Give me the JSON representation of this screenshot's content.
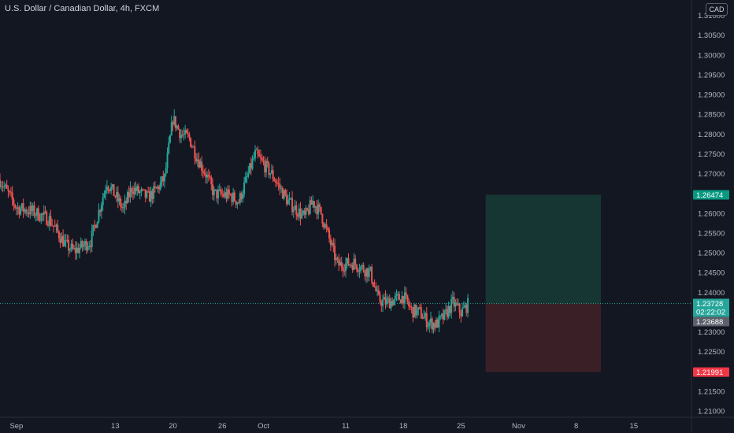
{
  "header": {
    "title": "U.S. Dollar / Canadian Dollar, 4h, FXCM",
    "currency_badge": "CAD"
  },
  "colors": {
    "background": "#131722",
    "up": "#26a69a",
    "down": "#ef5350",
    "text": "#b2b5be",
    "profit_zone": "#153633",
    "loss_zone": "#3a2026",
    "current_label": "#26a69a",
    "last_label": "#5d606b",
    "target_label": "#089981",
    "stop_label": "#f23645"
  },
  "chart_data": {
    "type": "candlestick",
    "title": "U.S. Dollar / Canadian Dollar, 4h, FXCM",
    "xlabel": "",
    "ylabel": "",
    "x_ticks": [
      "Sep",
      "13",
      "20",
      "26",
      "Oct",
      "11",
      "18",
      "25",
      "Nov",
      "8",
      "15"
    ],
    "y_ticks": [
      1.31,
      1.305,
      1.3,
      1.295,
      1.29,
      1.285,
      1.28,
      1.275,
      1.27,
      1.265,
      1.26,
      1.255,
      1.25,
      1.245,
      1.24,
      1.235,
      1.23,
      1.225,
      1.22,
      1.215,
      1.21
    ],
    "y_tick_labels": [
      "1.31000",
      "1.30500",
      "1.30000",
      "1.29500",
      "1.29000",
      "1.28500",
      "1.28000",
      "1.27500",
      "1.27000",
      "1.26500",
      "1.26000",
      "1.25500",
      "1.25000",
      "1.24500",
      "1.24000",
      "1.23500",
      "1.23000",
      "1.22500",
      "1.22000",
      "1.21500",
      "1.21000"
    ],
    "ylim": [
      1.2085,
      1.314
    ],
    "xlim": [
      "Aug 30",
      "Nov 22"
    ],
    "grid": false,
    "path": [
      {
        "date": "Aug 30",
        "price": 1.2685
      },
      {
        "date": "Sep 1",
        "price": 1.2615
      },
      {
        "date": "Sep 3",
        "price": 1.2605
      },
      {
        "date": "Sep 5",
        "price": 1.2585
      },
      {
        "date": "Sep 7",
        "price": 1.252
      },
      {
        "date": "Sep 8",
        "price": 1.2505
      },
      {
        "date": "Sep 10",
        "price": 1.253
      },
      {
        "date": "Sep 12",
        "price": 1.268
      },
      {
        "date": "Sep 14",
        "price": 1.261
      },
      {
        "date": "Sep 15",
        "price": 1.2665
      },
      {
        "date": "Sep 17",
        "price": 1.264
      },
      {
        "date": "Sep 18",
        "price": 1.266
      },
      {
        "date": "Sep 19",
        "price": 1.269
      },
      {
        "date": "Sep 20",
        "price": 1.284
      },
      {
        "date": "Sep 21",
        "price": 1.28
      },
      {
        "date": "Sep 22",
        "price": 1.279
      },
      {
        "date": "Sep 23",
        "price": 1.274
      },
      {
        "date": "Sep 24",
        "price": 1.27
      },
      {
        "date": "Sep 25",
        "price": 1.265
      },
      {
        "date": "Sep 27",
        "price": 1.2645
      },
      {
        "date": "Sep 28",
        "price": 1.263
      },
      {
        "date": "Sep 30",
        "price": 1.275
      },
      {
        "date": "Oct 2",
        "price": 1.27
      },
      {
        "date": "Oct 4",
        "price": 1.263
      },
      {
        "date": "Oct 6",
        "price": 1.259
      },
      {
        "date": "Oct 7",
        "price": 1.263
      },
      {
        "date": "Oct 8",
        "price": 1.26
      },
      {
        "date": "Oct 10",
        "price": 1.247
      },
      {
        "date": "Oct 12",
        "price": 1.2475
      },
      {
        "date": "Oct 14",
        "price": 1.245
      },
      {
        "date": "Oct 15",
        "price": 1.238
      },
      {
        "date": "Oct 16",
        "price": 1.2375
      },
      {
        "date": "Oct 18",
        "price": 1.239
      },
      {
        "date": "Oct 19",
        "price": 1.2355
      },
      {
        "date": "Oct 20",
        "price": 1.235
      },
      {
        "date": "Oct 21",
        "price": 1.2325
      },
      {
        "date": "Oct 22",
        "price": 1.232
      },
      {
        "date": "Oct 23",
        "price": 1.234
      },
      {
        "date": "Oct 24",
        "price": 1.2375
      },
      {
        "date": "Oct 25",
        "price": 1.235
      },
      {
        "date": "Oct 26",
        "price": 1.2373
      }
    ],
    "position": {
      "type": "long",
      "start_date": "Oct 28",
      "end_date": "Nov 11",
      "entry": 1.23728,
      "target": 1.26474,
      "stop": 1.21991
    },
    "price_labels": {
      "target": "1.26474",
      "current": "1.23728",
      "countdown": "02:22:02",
      "last": "1.23688",
      "stop": "1.21991"
    }
  }
}
